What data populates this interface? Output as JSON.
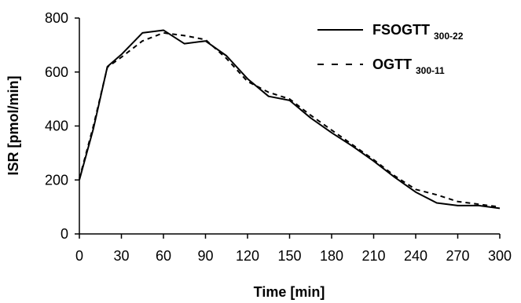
{
  "chart_data": {
    "type": "line",
    "xlabel": "Time [min]",
    "ylabel": "ISR [pmol/min]",
    "xlim": [
      0,
      300
    ],
    "ylim": [
      0,
      800
    ],
    "xticks": [
      0,
      30,
      60,
      90,
      120,
      150,
      180,
      210,
      240,
      270,
      300
    ],
    "yticks": [
      0,
      200,
      400,
      600,
      800
    ],
    "grid": false,
    "legend_position": "top-right",
    "series": [
      {
        "name": "FSOGTT",
        "name_sub": "300-22",
        "line_style": "solid",
        "color": "#000000",
        "x": [
          0,
          10,
          20,
          30,
          45,
          60,
          75,
          90,
          105,
          120,
          135,
          150,
          165,
          180,
          195,
          210,
          225,
          240,
          255,
          270,
          285,
          300
        ],
        "y": [
          200,
          390,
          620,
          665,
          745,
          755,
          705,
          715,
          660,
          575,
          510,
          495,
          430,
          375,
          325,
          270,
          210,
          155,
          115,
          105,
          105,
          95
        ]
      },
      {
        "name": "OGTT",
        "name_sub": "300-11",
        "line_style": "dashed",
        "color": "#000000",
        "x": [
          0,
          10,
          20,
          30,
          45,
          60,
          75,
          90,
          105,
          120,
          135,
          150,
          165,
          180,
          195,
          210,
          225,
          240,
          255,
          270,
          285,
          300
        ],
        "y": [
          205,
          400,
          618,
          655,
          715,
          745,
          735,
          720,
          650,
          565,
          525,
          500,
          440,
          385,
          330,
          275,
          215,
          165,
          145,
          120,
          110,
          100
        ]
      }
    ]
  }
}
